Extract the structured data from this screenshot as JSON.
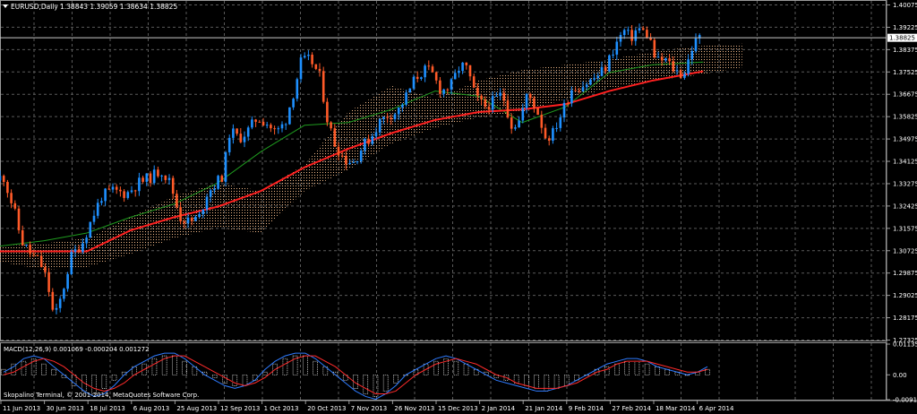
{
  "window": {
    "title": "EURUSD,Daily",
    "ohlc": "1.38843 1.39059 1.38634 1.38825",
    "copyright": "Skopalino Terminal, © 2001-2014, MetaQuotes Software Corp."
  },
  "colors": {
    "background": "#000000",
    "grid": "#5a5a5a",
    "bull_candle": "#1e90ff",
    "bear_candle": "#ff5a28",
    "ma_long": "#ff2020",
    "ma_short": "#1f9b1f",
    "cloud": "#f0b888",
    "cloud_alt": "#e8e8e8",
    "macd_line": "#2e7bff",
    "signal_line": "#ff2b2b",
    "histogram": "#ffffff",
    "price_line": "#c8c8c8"
  },
  "chart_data": [
    {
      "type": "line",
      "subtype": "candlestick",
      "title": "EURUSD,Daily",
      "symbol": "EURUSD",
      "timeframe": "Daily",
      "last_price": "1.38825",
      "price_label": "1.38825",
      "ylim": [
        1.27325,
        1.40075
      ],
      "y_ticks": [
        "1.40075",
        "1.39225",
        "1.38375",
        "1.37525",
        "1.36675",
        "1.35825",
        "1.34975",
        "1.34125",
        "1.33275",
        "1.32425",
        "1.31575",
        "1.30725",
        "1.29875",
        "1.29025",
        "1.28175",
        "1.27325"
      ],
      "x_ticks": [
        "11 Jun 2013",
        "30 Jun 2013",
        "18 Jul 2013",
        "6 Aug 2013",
        "25 Aug 2013",
        "12 Sep 2013",
        "1 Oct 2013",
        "20 Oct 2013",
        "7 Nov 2013",
        "26 Nov 2013",
        "15 Dec 2013",
        "2 Jan 2014",
        "21 Jan 2014",
        "9 Feb 2014",
        "27 Feb 2014",
        "18 Mar 2014",
        "6 Apr 2014"
      ],
      "price_path": [
        {
          "x": "11 Jun 2013",
          "y": 1.334
        },
        {
          "x": "14 Jun 2013",
          "y": 1.336
        },
        {
          "x": "19 Jun 2013",
          "y": 1.322
        },
        {
          "x": "22 Jun 2013",
          "y": 1.311
        },
        {
          "x": "26 Jun 2013",
          "y": 1.306
        },
        {
          "x": "30 Jun 2013",
          "y": 1.303
        },
        {
          "x": "3 Jul 2013",
          "y": 1.296
        },
        {
          "x": "6 Jul 2013",
          "y": 1.281
        },
        {
          "x": "9 Jul 2013",
          "y": 1.29
        },
        {
          "x": "13 Jul 2013",
          "y": 1.305
        },
        {
          "x": "18 Jul 2013",
          "y": 1.311
        },
        {
          "x": "22 Jul 2013",
          "y": 1.32
        },
        {
          "x": "26 Jul 2013",
          "y": 1.328
        },
        {
          "x": "31 Jul 2013",
          "y": 1.33
        },
        {
          "x": "6 Aug 2013",
          "y": 1.329
        },
        {
          "x": "11 Aug 2013",
          "y": 1.333
        },
        {
          "x": "16 Aug 2013",
          "y": 1.335
        },
        {
          "x": "21 Aug 2013",
          "y": 1.338
        },
        {
          "x": "25 Aug 2013",
          "y": 1.333
        },
        {
          "x": "29 Aug 2013",
          "y": 1.32
        },
        {
          "x": "2 Sep 2013",
          "y": 1.318
        },
        {
          "x": "6 Sep 2013",
          "y": 1.32
        },
        {
          "x": "9 Sep 2013",
          "y": 1.329
        },
        {
          "x": "12 Sep 2013",
          "y": 1.332
        },
        {
          "x": "16 Sep 2013",
          "y": 1.336
        },
        {
          "x": "19 Sep 2013",
          "y": 1.353
        },
        {
          "x": "23 Sep 2013",
          "y": 1.35
        },
        {
          "x": "27 Sep 2013",
          "y": 1.353
        },
        {
          "x": "1 Oct 2013",
          "y": 1.358
        },
        {
          "x": "5 Oct 2013",
          "y": 1.356
        },
        {
          "x": "9 Oct 2013",
          "y": 1.352
        },
        {
          "x": "13 Oct 2013",
          "y": 1.356
        },
        {
          "x": "17 Oct 2013",
          "y": 1.368
        },
        {
          "x": "20 Oct 2013",
          "y": 1.379
        },
        {
          "x": "24 Oct 2013",
          "y": 1.38
        },
        {
          "x": "28 Oct 2013",
          "y": 1.373
        },
        {
          "x": "31 Oct 2013",
          "y": 1.357
        },
        {
          "x": "3 Nov 2013",
          "y": 1.348
        },
        {
          "x": "7 Nov 2013",
          "y": 1.342
        },
        {
          "x": "11 Nov 2013",
          "y": 1.341
        },
        {
          "x": "15 Nov 2013",
          "y": 1.347
        },
        {
          "x": "19 Nov 2013",
          "y": 1.351
        },
        {
          "x": "22 Nov 2013",
          "y": 1.356
        },
        {
          "x": "26 Nov 2013",
          "y": 1.359
        },
        {
          "x": "30 Nov 2013",
          "y": 1.36
        },
        {
          "x": "4 Dec 2013",
          "y": 1.366
        },
        {
          "x": "8 Dec 2013",
          "y": 1.373
        },
        {
          "x": "12 Dec 2013",
          "y": 1.376
        },
        {
          "x": "15 Dec 2013",
          "y": 1.375
        },
        {
          "x": "19 Dec 2013",
          "y": 1.368
        },
        {
          "x": "23 Dec 2013",
          "y": 1.37
        },
        {
          "x": "27 Dec 2013",
          "y": 1.378
        },
        {
          "x": "30 Dec 2013",
          "y": 1.376
        },
        {
          "x": "2 Jan 2014",
          "y": 1.366
        },
        {
          "x": "6 Jan 2014",
          "y": 1.362
        },
        {
          "x": "10 Jan 2014",
          "y": 1.364
        },
        {
          "x": "14 Jan 2014",
          "y": 1.367
        },
        {
          "x": "18 Jan 2014",
          "y": 1.355
        },
        {
          "x": "21 Jan 2014",
          "y": 1.356
        },
        {
          "x": "25 Jan 2014",
          "y": 1.367
        },
        {
          "x": "29 Jan 2014",
          "y": 1.361
        },
        {
          "x": "2 Feb 2014",
          "y": 1.35
        },
        {
          "x": "5 Feb 2014",
          "y": 1.352
        },
        {
          "x": "9 Feb 2014",
          "y": 1.36
        },
        {
          "x": "13 Feb 2014",
          "y": 1.369
        },
        {
          "x": "17 Feb 2014",
          "y": 1.37
        },
        {
          "x": "21 Feb 2014",
          "y": 1.372
        },
        {
          "x": "24 Feb 2014",
          "y": 1.374
        },
        {
          "x": "27 Feb 2014",
          "y": 1.377
        },
        {
          "x": "3 Mar 2014",
          "y": 1.385
        },
        {
          "x": "7 Mar 2014",
          "y": 1.391
        },
        {
          "x": "10 Mar 2014",
          "y": 1.388
        },
        {
          "x": "13 Mar 2014",
          "y": 1.392
        },
        {
          "x": "18 Mar 2014",
          "y": 1.389
        },
        {
          "x": "21 Mar 2014",
          "y": 1.379
        },
        {
          "x": "25 Mar 2014",
          "y": 1.38
        },
        {
          "x": "29 Mar 2014",
          "y": 1.376
        },
        {
          "x": "2 Apr 2014",
          "y": 1.374
        },
        {
          "x": "6 Apr 2014",
          "y": 1.385
        },
        {
          "x": "9 Apr 2014",
          "y": 1.3883
        }
      ],
      "ma_long": [
        {
          "x": "11 Jun 2013",
          "y": 1.307
        },
        {
          "x": "18 Jul 2013",
          "y": 1.307
        },
        {
          "x": "6 Aug 2013",
          "y": 1.315
        },
        {
          "x": "25 Aug 2013",
          "y": 1.32
        },
        {
          "x": "12 Sep 2013",
          "y": 1.324
        },
        {
          "x": "1 Oct 2013",
          "y": 1.33
        },
        {
          "x": "20 Oct 2013",
          "y": 1.339
        },
        {
          "x": "7 Nov 2013",
          "y": 1.346
        },
        {
          "x": "26 Nov 2013",
          "y": 1.352
        },
        {
          "x": "15 Dec 2013",
          "y": 1.357
        },
        {
          "x": "2 Jan 2014",
          "y": 1.36
        },
        {
          "x": "21 Jan 2014",
          "y": 1.361
        },
        {
          "x": "9 Feb 2014",
          "y": 1.363
        },
        {
          "x": "27 Feb 2014",
          "y": 1.368
        },
        {
          "x": "18 Mar 2014",
          "y": 1.372
        },
        {
          "x": "9 Apr 2014",
          "y": 1.3755
        }
      ],
      "ma_short": [
        {
          "x": "11 Jun 2013",
          "y": 1.309
        },
        {
          "x": "30 Jun 2013",
          "y": 1.311
        },
        {
          "x": "18 Jul 2013",
          "y": 1.314
        },
        {
          "x": "6 Aug 2013",
          "y": 1.32
        },
        {
          "x": "25 Aug 2013",
          "y": 1.325
        },
        {
          "x": "12 Sep 2013",
          "y": 1.333
        },
        {
          "x": "1 Oct 2013",
          "y": 1.345
        },
        {
          "x": "20 Oct 2013",
          "y": 1.355
        },
        {
          "x": "7 Nov 2013",
          "y": 1.356
        },
        {
          "x": "26 Nov 2013",
          "y": 1.361
        },
        {
          "x": "15 Dec 2013",
          "y": 1.368
        },
        {
          "x": "2 Jan 2014",
          "y": 1.366
        },
        {
          "x": "21 Jan 2014",
          "y": 1.356
        },
        {
          "x": "9 Feb 2014",
          "y": 1.362
        },
        {
          "x": "27 Feb 2014",
          "y": 1.375
        },
        {
          "x": "18 Mar 2014",
          "y": 1.378
        },
        {
          "x": "9 Apr 2014",
          "y": 1.379
        }
      ],
      "cloud": [
        {
          "x": "11 Jun 2013",
          "top": 1.309,
          "bottom": 1.303
        },
        {
          "x": "30 Jun 2013",
          "top": 1.31,
          "bottom": 1.3
        },
        {
          "x": "18 Jul 2013",
          "top": 1.312,
          "bottom": 1.301
        },
        {
          "x": "6 Aug 2013",
          "top": 1.32,
          "bottom": 1.306
        },
        {
          "x": "25 Aug 2013",
          "top": 1.328,
          "bottom": 1.312
        },
        {
          "x": "12 Sep 2013",
          "top": 1.333,
          "bottom": 1.316
        },
        {
          "x": "1 Oct 2013",
          "top": 1.33,
          "bottom": 1.314
        },
        {
          "x": "20 Oct 2013",
          "top": 1.34,
          "bottom": 1.33
        },
        {
          "x": "7 Nov 2013",
          "top": 1.36,
          "bottom": 1.338
        },
        {
          "x": "26 Nov 2013",
          "top": 1.37,
          "bottom": 1.348
        },
        {
          "x": "15 Dec 2013",
          "top": 1.365,
          "bottom": 1.354
        },
        {
          "x": "2 Jan 2014",
          "top": 1.372,
          "bottom": 1.358
        },
        {
          "x": "21 Jan 2014",
          "top": 1.376,
          "bottom": 1.36
        },
        {
          "x": "9 Feb 2014",
          "top": 1.378,
          "bottom": 1.365
        },
        {
          "x": "27 Feb 2014",
          "top": 1.38,
          "bottom": 1.369
        },
        {
          "x": "18 Mar 2014",
          "top": 1.383,
          "bottom": 1.372
        },
        {
          "x": "6 Apr 2014",
          "top": 1.385,
          "bottom": 1.374
        },
        {
          "x": "26 Apr 2014",
          "top": 1.386,
          "bottom": 1.377
        }
      ],
      "grid": true
    },
    {
      "type": "bar",
      "title": "MACD(12,26,9) 0.001069 -0.000204 0.001272",
      "indicator": "MACD",
      "params": "12,26,9",
      "values_text": "0.001069 -0.000204 0.001272",
      "ylim": [
        -0.00917,
        0.01135
      ],
      "y_ticks": [
        "0.01135",
        "0.00",
        "-0.009172"
      ],
      "histogram": [
        0.002,
        0.004,
        0.005,
        0.006,
        0.004,
        0.002,
        -0.001,
        -0.004,
        -0.006,
        -0.007,
        -0.005,
        -0.002,
        0.001,
        0.003,
        0.004,
        0.006,
        0.007,
        0.007,
        0.005,
        0.003,
        0.001,
        -0.001,
        -0.003,
        -0.004,
        -0.004,
        -0.002,
        0.001,
        0.004,
        0.006,
        0.007,
        0.007,
        0.005,
        0.003,
        0.001,
        -0.002,
        -0.005,
        -0.007,
        -0.008,
        -0.006,
        -0.003,
        0.0,
        0.002,
        0.004,
        0.005,
        0.006,
        0.005,
        0.004,
        0.002,
        0.001,
        -0.001,
        -0.002,
        -0.003,
        -0.004,
        -0.005,
        -0.006,
        -0.005,
        -0.004,
        -0.002,
        0.0,
        0.002,
        0.003,
        0.004,
        0.005,
        0.005,
        0.004,
        0.003,
        0.002,
        0.001,
        0.0,
        0.001,
        0.002
      ],
      "macd_line": [
        0.001,
        0.003,
        0.006,
        0.007,
        0.006,
        0.003,
        0.0,
        -0.003,
        -0.006,
        -0.008,
        -0.007,
        -0.004,
        0.0,
        0.003,
        0.005,
        0.007,
        0.008,
        0.008,
        0.006,
        0.003,
        0.0,
        -0.002,
        -0.004,
        -0.005,
        -0.004,
        -0.002,
        0.002,
        0.005,
        0.007,
        0.008,
        0.008,
        0.006,
        0.003,
        0.0,
        -0.003,
        -0.006,
        -0.008,
        -0.009,
        -0.007,
        -0.004,
        0.0,
        0.002,
        0.004,
        0.006,
        0.007,
        0.006,
        0.004,
        0.002,
        0.0,
        -0.002,
        -0.003,
        -0.004,
        -0.005,
        -0.006,
        -0.006,
        -0.005,
        -0.004,
        -0.002,
        0.0,
        0.002,
        0.004,
        0.005,
        0.006,
        0.006,
        0.005,
        0.003,
        0.002,
        0.001,
        0.0,
        0.001,
        0.003
      ],
      "signal_line": [
        0.0,
        0.001,
        0.003,
        0.005,
        0.006,
        0.005,
        0.003,
        0.0,
        -0.003,
        -0.005,
        -0.006,
        -0.005,
        -0.003,
        0.0,
        0.002,
        0.004,
        0.006,
        0.007,
        0.007,
        0.005,
        0.003,
        0.001,
        -0.001,
        -0.003,
        -0.004,
        -0.003,
        -0.001,
        0.002,
        0.004,
        0.006,
        0.007,
        0.007,
        0.005,
        0.003,
        0.0,
        -0.003,
        -0.005,
        -0.007,
        -0.007,
        -0.006,
        -0.003,
        0.0,
        0.002,
        0.004,
        0.005,
        0.006,
        0.005,
        0.004,
        0.002,
        0.0,
        -0.001,
        -0.003,
        -0.004,
        -0.005,
        -0.005,
        -0.005,
        -0.004,
        -0.003,
        -0.001,
        0.001,
        0.002,
        0.004,
        0.005,
        0.005,
        0.005,
        0.004,
        0.003,
        0.002,
        0.001,
        0.001,
        0.002
      ]
    }
  ]
}
